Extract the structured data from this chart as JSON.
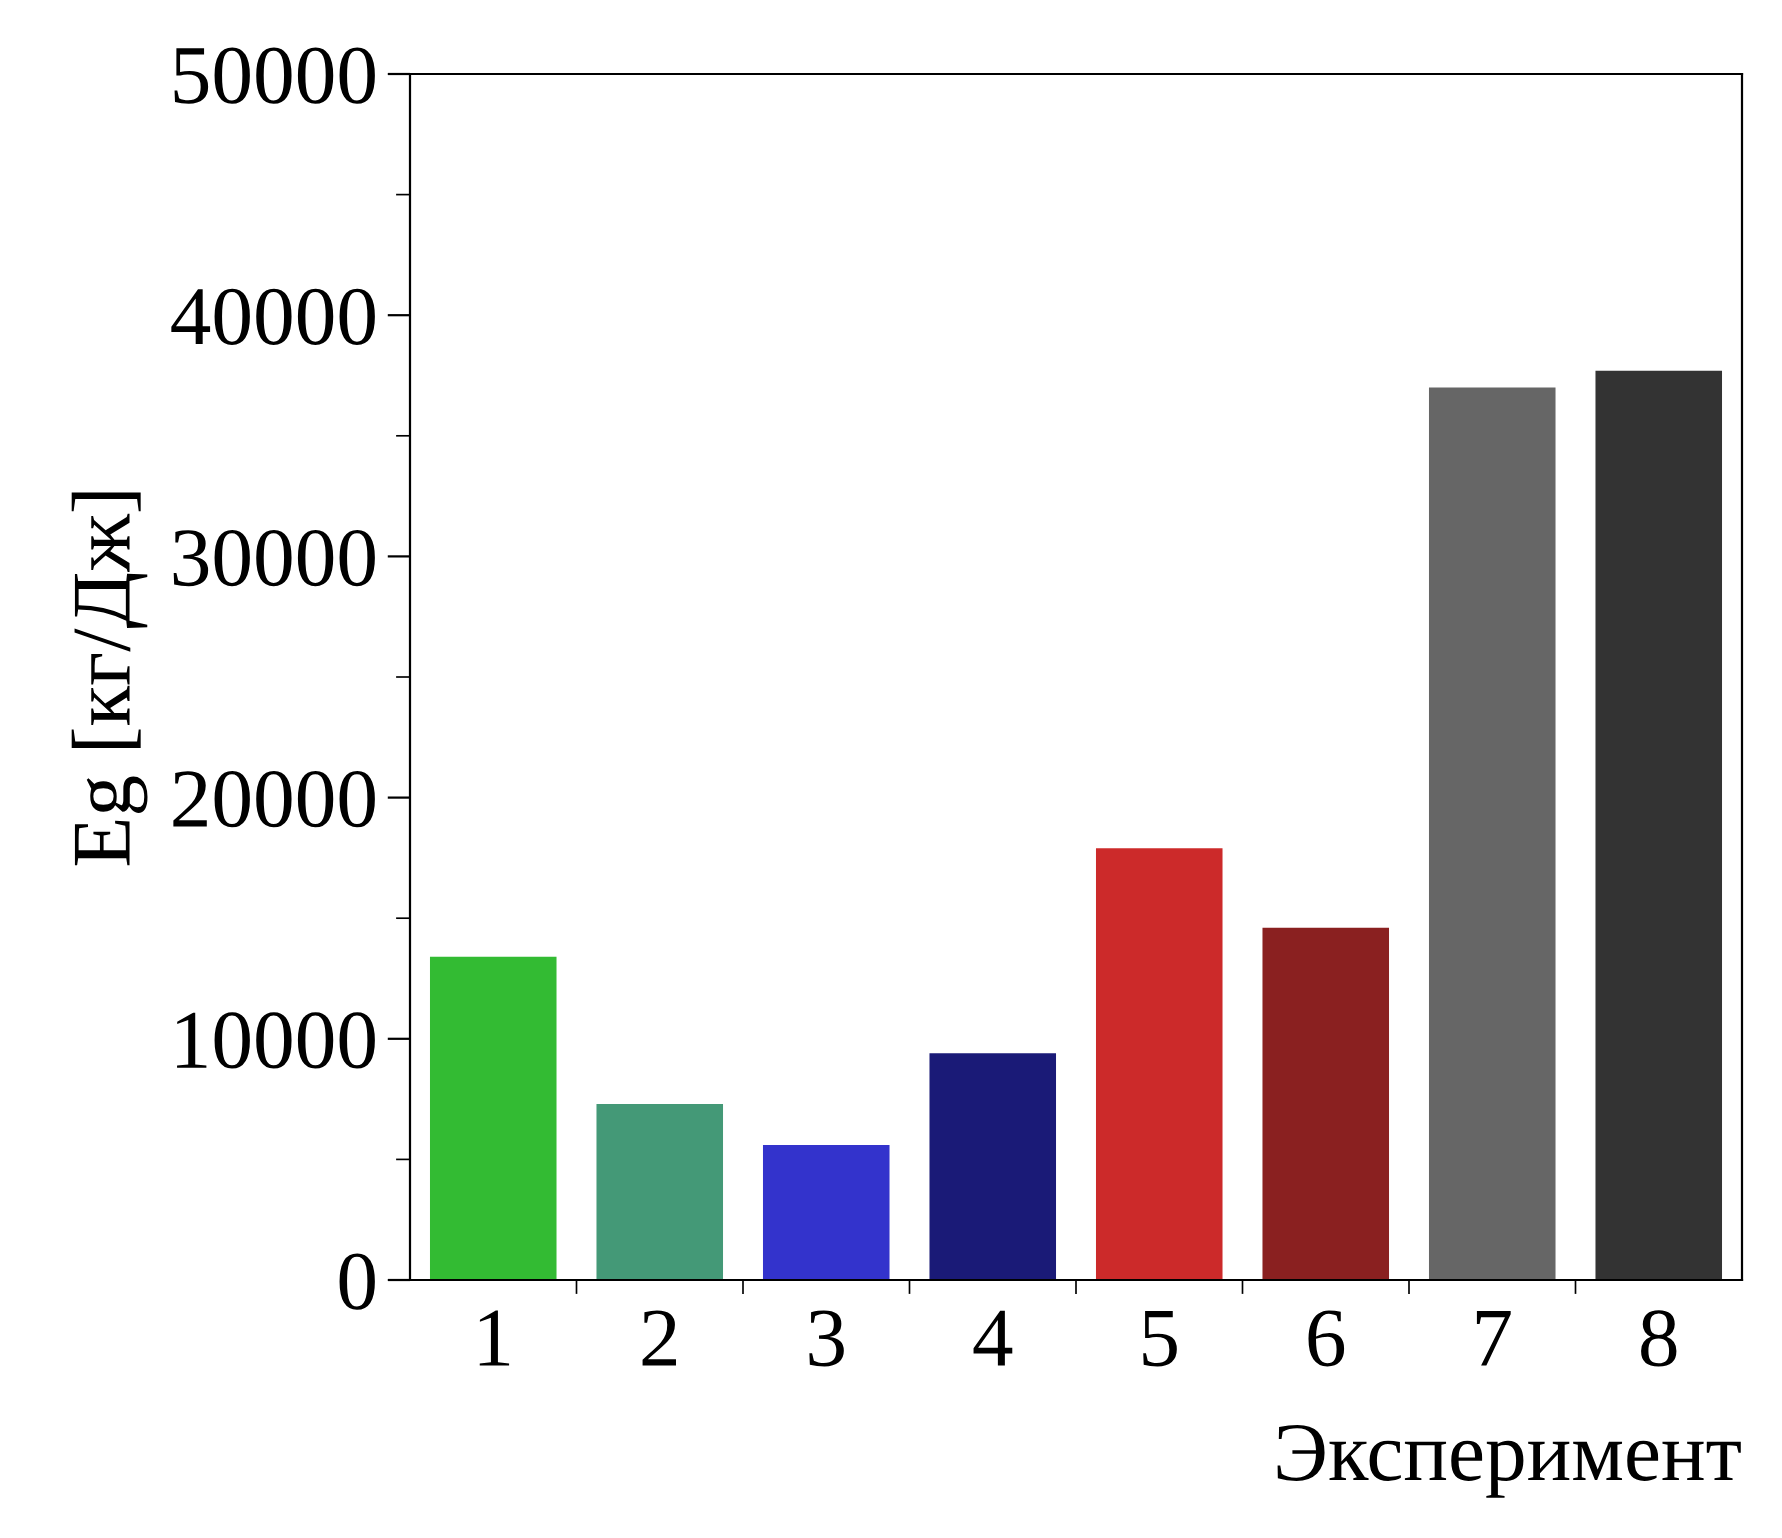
{
  "chart_data": {
    "type": "bar",
    "xlabel": "Эксперимент",
    "ylabel": "Eg [кг/Дж]",
    "categories": [
      "1",
      "2",
      "3",
      "4",
      "5",
      "6",
      "7",
      "8"
    ],
    "values": [
      13400,
      7300,
      5600,
      9400,
      17900,
      14600,
      37000,
      37700
    ],
    "colors": [
      "#33bb33",
      "#449977",
      "#3333cc",
      "#1a1a77",
      "#cc2a2a",
      "#8a2020",
      "#666666",
      "#333333"
    ],
    "ylim": [
      0,
      50000
    ],
    "yticks": [
      0,
      10000,
      20000,
      30000,
      40000,
      50000
    ],
    "grid": false
  }
}
